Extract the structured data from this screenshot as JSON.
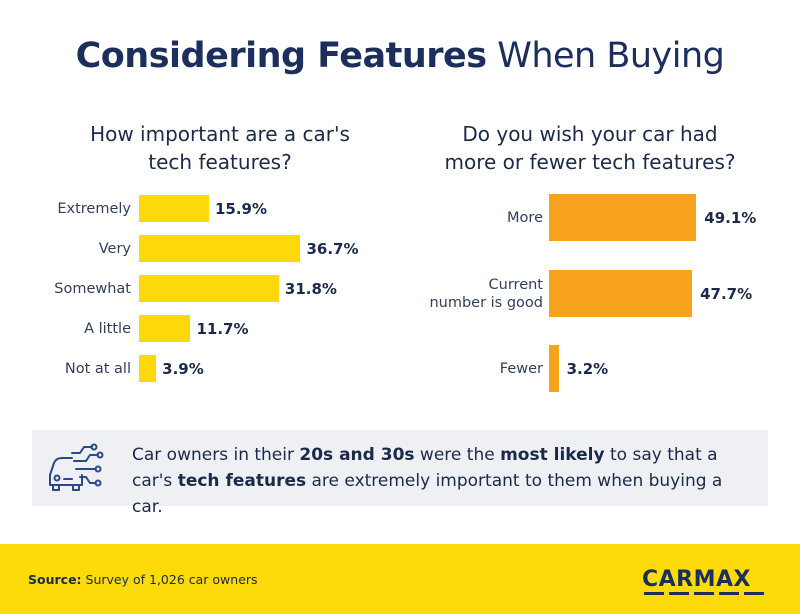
{
  "title": {
    "bold": "Considering Features",
    "regular": "When Buying"
  },
  "callout": {
    "icon": "car-tech-icon",
    "parts": [
      {
        "text": "Car owners in their ",
        "bold": false
      },
      {
        "text": "20s and 30s",
        "bold": true
      },
      {
        "text": " were the ",
        "bold": false
      },
      {
        "text": "most likely",
        "bold": true
      },
      {
        "text": " to say that a car's ",
        "bold": false
      },
      {
        "text": "tech features",
        "bold": true
      },
      {
        "text": " are extremely important to them when buying a car.",
        "bold": false
      }
    ]
  },
  "footer": {
    "source_label": "Source:",
    "source_text": " Survey of 1,026 car owners",
    "logo_text": "CARMAX"
  },
  "colors": {
    "yellow": "#fdd80a",
    "orange": "#f7a21d",
    "navy": "#1b2e5c",
    "callout_bg": "#eef0f3"
  },
  "chart_data": [
    {
      "type": "bar",
      "orientation": "horizontal",
      "title_lines": [
        "How important are a car's",
        "tech features?"
      ],
      "categories": [
        "Extremely",
        "Very",
        "Somewhat",
        "A little",
        "Not at all"
      ],
      "values": [
        15.9,
        36.7,
        31.8,
        11.7,
        3.9
      ],
      "value_labels": [
        "15.9%",
        "36.7%",
        "31.8%",
        "11.7%",
        "3.9%"
      ],
      "unit": "%",
      "color": "#fdd80a"
    },
    {
      "type": "bar",
      "orientation": "horizontal",
      "title_lines": [
        "Do you wish your car had",
        "more or fewer tech features?"
      ],
      "categories": [
        [
          "More"
        ],
        [
          "Current",
          "number is good"
        ],
        [
          "Fewer"
        ]
      ],
      "values": [
        49.1,
        47.7,
        3.2
      ],
      "value_labels": [
        "49.1%",
        "47.7%",
        "3.2%"
      ],
      "unit": "%",
      "color": "#f7a21d"
    }
  ]
}
